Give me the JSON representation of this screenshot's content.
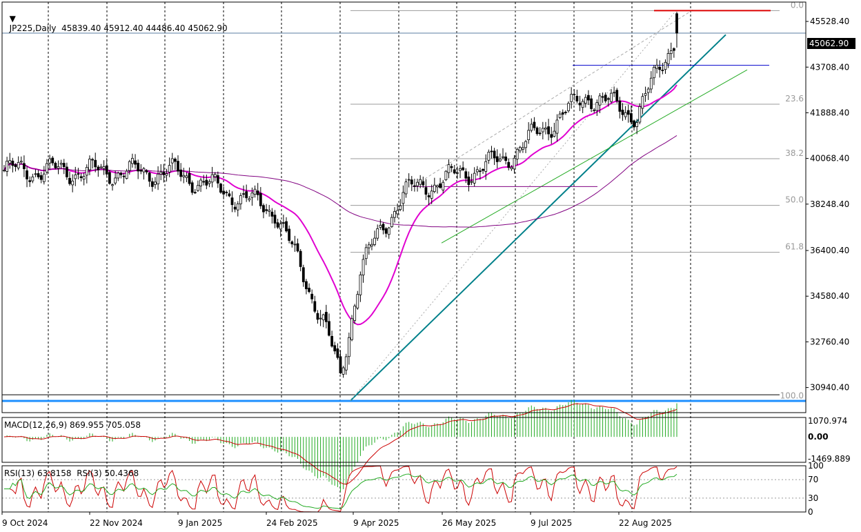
{
  "header": {
    "symbol_line": "JP225,Daily  45839.40 45912.40 44486.40 45062.90",
    "macd_label": "MACD(12,26,9) 869.955 705.058",
    "rsi_label": "RSI(13) 63.8158  RSI(3) 50.4368"
  },
  "current_price_label": "45062.90",
  "colors": {
    "candle": "#000000",
    "ma_fast": "#e000d0",
    "ma_slow": "#800080",
    "trend_main": "#00808a",
    "trend_green": "#22aa22",
    "resistance_red": "#dd0000",
    "level_blue": "#0000cc",
    "level_purple": "#800080",
    "support_cyan": "#1e90ff",
    "macd_hist": "#22aa22",
    "macd_signal": "#cc0000",
    "rsi_13": "#22aa22",
    "rsi_3": "#cc0000"
  },
  "chart_data": [
    {
      "type": "candlestick",
      "title": "JP225,Daily",
      "ohlc_last": {
        "open": 45839.4,
        "high": 45912.4,
        "low": 44486.4,
        "close": 45062.9
      },
      "y_ticks": [
        "45528.40",
        "43708.40",
        "41888.40",
        "40068.40",
        "38248.40",
        "36400.40",
        "34580.40",
        "32760.40",
        "30940.40"
      ],
      "ylim": [
        29940,
        46300
      ],
      "x_ticks": [
        "9 Oct 2024",
        "22 Nov 2024",
        "9 Jan 2025",
        "24 Feb 2025",
        "9 Apr 2025",
        "26 May 2025",
        "9 Jul 2025",
        "22 Aug 2025"
      ],
      "fib_levels": [
        {
          "label": "0.0",
          "value": 45960
        },
        {
          "label": "23.6",
          "value": 42230
        },
        {
          "label": "38.2",
          "value": 40060
        },
        {
          "label": "50.0",
          "value": 38200
        },
        {
          "label": "61.8",
          "value": 36330
        },
        {
          "label": "100.0",
          "value": 30400
        }
      ],
      "key_prices": [
        {
          "date_index": 0,
          "close": 39600
        },
        {
          "date_index": 60,
          "close": 39500
        },
        {
          "date_index": 95,
          "close": 38000
        },
        {
          "date_index": 112,
          "close": 33600
        },
        {
          "date_index": 118,
          "close": 31300
        },
        {
          "date_index": 125,
          "close": 35700
        },
        {
          "date_index": 140,
          "close": 38700
        },
        {
          "date_index": 175,
          "close": 40000
        },
        {
          "date_index": 205,
          "close": 42600
        },
        {
          "date_index": 222,
          "close": 41800
        },
        {
          "date_index": 236,
          "close": 45062.9
        }
      ]
    },
    {
      "type": "bar",
      "title": "MACD(12,26,9)",
      "series": [
        {
          "name": "MACD",
          "last": 869.955
        },
        {
          "name": "Signal",
          "last": 705.058
        }
      ],
      "y_ticks": [
        "1070.974",
        "0.00",
        "-1469.889"
      ],
      "ylim": [
        -1700,
        1300
      ]
    },
    {
      "type": "line",
      "title": "RSI",
      "series": [
        {
          "name": "RSI(13)",
          "last": 63.8158
        },
        {
          "name": "RSI(3)",
          "last": 50.4368
        }
      ],
      "y_ticks": [
        "100",
        "70",
        "30",
        "0"
      ],
      "ylim": [
        0,
        100
      ]
    }
  ]
}
